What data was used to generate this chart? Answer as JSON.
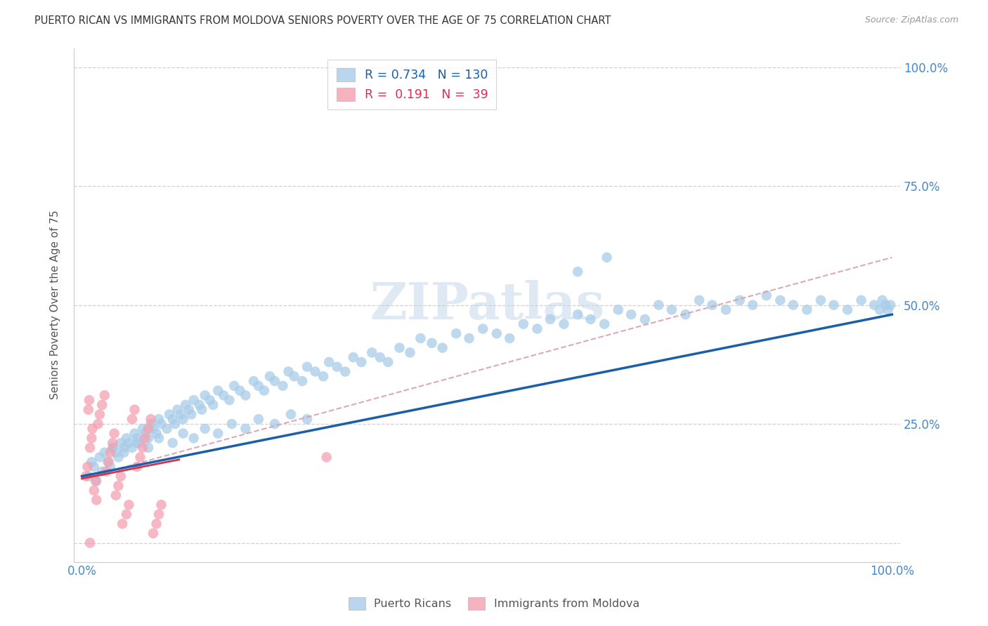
{
  "title": "PUERTO RICAN VS IMMIGRANTS FROM MOLDOVA SENIORS POVERTY OVER THE AGE OF 75 CORRELATION CHART",
  "source": "Source: ZipAtlas.com",
  "ylabel": "Seniors Poverty Over the Age of 75",
  "color_blue": "#a8cce8",
  "color_pink": "#f4a0b0",
  "color_blue_line": "#1a5fa8",
  "color_pink_line": "#d43050",
  "color_pink_dashed": "#d8a0b0",
  "watermark_text": "ZIPatlas",
  "background_color": "#ffffff",
  "grid_color": "#d0d0d0",
  "axis_label_color": "#4488cc",
  "title_color": "#333333",
  "legend_blue_r": "R = 0.734",
  "legend_blue_n": "N = 130",
  "legend_pink_r": "R =  0.191",
  "legend_pink_n": "N =  39",
  "blue_x": [
    0.008,
    0.012,
    0.015,
    0.018,
    0.022,
    0.025,
    0.028,
    0.032,
    0.035,
    0.038,
    0.042,
    0.045,
    0.048,
    0.052,
    0.055,
    0.058,
    0.062,
    0.065,
    0.068,
    0.072,
    0.075,
    0.078,
    0.082,
    0.085,
    0.088,
    0.092,
    0.095,
    0.098,
    0.105,
    0.108,
    0.112,
    0.115,
    0.118,
    0.122,
    0.125,
    0.128,
    0.132,
    0.135,
    0.138,
    0.145,
    0.148,
    0.152,
    0.158,
    0.162,
    0.168,
    0.175,
    0.182,
    0.188,
    0.195,
    0.202,
    0.212,
    0.218,
    0.225,
    0.232,
    0.238,
    0.248,
    0.255,
    0.262,
    0.272,
    0.278,
    0.288,
    0.298,
    0.305,
    0.315,
    0.325,
    0.335,
    0.345,
    0.358,
    0.368,
    0.378,
    0.392,
    0.405,
    0.418,
    0.432,
    0.445,
    0.462,
    0.478,
    0.495,
    0.512,
    0.528,
    0.545,
    0.562,
    0.578,
    0.595,
    0.612,
    0.628,
    0.645,
    0.662,
    0.678,
    0.695,
    0.712,
    0.728,
    0.745,
    0.762,
    0.778,
    0.795,
    0.812,
    0.828,
    0.845,
    0.862,
    0.878,
    0.895,
    0.912,
    0.928,
    0.945,
    0.962,
    0.978,
    0.985,
    0.988,
    0.992,
    0.995,
    0.998,
    0.612,
    0.648,
    0.038,
    0.052,
    0.068,
    0.082,
    0.095,
    0.112,
    0.125,
    0.138,
    0.152,
    0.168,
    0.185,
    0.202,
    0.218,
    0.238,
    0.258,
    0.278
  ],
  "blue_y": [
    0.14,
    0.17,
    0.16,
    0.13,
    0.18,
    0.15,
    0.19,
    0.17,
    0.16,
    0.2,
    0.19,
    0.18,
    0.21,
    0.2,
    0.22,
    0.21,
    0.2,
    0.23,
    0.22,
    0.21,
    0.24,
    0.23,
    0.22,
    0.25,
    0.24,
    0.23,
    0.26,
    0.25,
    0.24,
    0.27,
    0.26,
    0.25,
    0.28,
    0.27,
    0.26,
    0.29,
    0.28,
    0.27,
    0.3,
    0.29,
    0.28,
    0.31,
    0.3,
    0.29,
    0.32,
    0.31,
    0.3,
    0.33,
    0.32,
    0.31,
    0.34,
    0.33,
    0.32,
    0.35,
    0.34,
    0.33,
    0.36,
    0.35,
    0.34,
    0.37,
    0.36,
    0.35,
    0.38,
    0.37,
    0.36,
    0.39,
    0.38,
    0.4,
    0.39,
    0.38,
    0.41,
    0.4,
    0.43,
    0.42,
    0.41,
    0.44,
    0.43,
    0.45,
    0.44,
    0.43,
    0.46,
    0.45,
    0.47,
    0.46,
    0.48,
    0.47,
    0.46,
    0.49,
    0.48,
    0.47,
    0.5,
    0.49,
    0.48,
    0.51,
    0.5,
    0.49,
    0.51,
    0.5,
    0.52,
    0.51,
    0.5,
    0.49,
    0.51,
    0.5,
    0.49,
    0.51,
    0.5,
    0.49,
    0.51,
    0.5,
    0.49,
    0.5,
    0.57,
    0.6,
    0.2,
    0.19,
    0.21,
    0.2,
    0.22,
    0.21,
    0.23,
    0.22,
    0.24,
    0.23,
    0.25,
    0.24,
    0.26,
    0.25,
    0.27,
    0.26
  ],
  "pink_x": [
    0.005,
    0.007,
    0.008,
    0.009,
    0.01,
    0.012,
    0.013,
    0.015,
    0.017,
    0.018,
    0.02,
    0.022,
    0.025,
    0.028,
    0.03,
    0.033,
    0.035,
    0.038,
    0.04,
    0.042,
    0.045,
    0.048,
    0.05,
    0.055,
    0.058,
    0.062,
    0.065,
    0.068,
    0.072,
    0.075,
    0.078,
    0.082,
    0.085,
    0.088,
    0.092,
    0.095,
    0.098,
    0.302,
    0.01
  ],
  "pink_y": [
    0.14,
    0.16,
    0.28,
    0.3,
    0.2,
    0.22,
    0.24,
    0.11,
    0.13,
    0.09,
    0.25,
    0.27,
    0.29,
    0.31,
    0.15,
    0.17,
    0.19,
    0.21,
    0.23,
    0.1,
    0.12,
    0.14,
    0.04,
    0.06,
    0.08,
    0.26,
    0.28,
    0.16,
    0.18,
    0.2,
    0.22,
    0.24,
    0.26,
    0.02,
    0.04,
    0.06,
    0.08,
    0.18,
    0.0
  ],
  "blue_regression": [
    0.0,
    1.0,
    0.14,
    0.48
  ],
  "pink_regression_solid": [
    0.0,
    0.12,
    0.135,
    0.175
  ],
  "pink_dashed_full": [
    0.0,
    1.0,
    0.135,
    0.6
  ]
}
